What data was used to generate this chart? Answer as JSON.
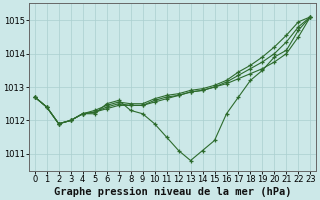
{
  "title": "Graphe pression niveau de la mer (hPa)",
  "background_color": "#cce8e8",
  "grid_color": "#aacfcf",
  "line_color": "#2d6b2d",
  "marker_color": "#2d6b2d",
  "xlim": [
    -0.5,
    23.5
  ],
  "ylim": [
    1010.5,
    1015.5
  ],
  "yticks": [
    1011,
    1012,
    1013,
    1014,
    1015
  ],
  "xticks": [
    0,
    1,
    2,
    3,
    4,
    5,
    6,
    7,
    8,
    9,
    10,
    11,
    12,
    13,
    14,
    15,
    16,
    17,
    18,
    19,
    20,
    21,
    22,
    23
  ],
  "series": [
    [
      1012.7,
      1012.4,
      1011.9,
      1012.0,
      1012.2,
      1012.2,
      1012.5,
      1012.6,
      1012.3,
      1012.2,
      1011.9,
      1011.5,
      1011.1,
      1010.8,
      1011.1,
      1011.4,
      1012.2,
      1012.7,
      1013.2,
      1013.5,
      1013.9,
      1014.1,
      1014.7,
      1015.1
    ],
    [
      1012.7,
      1012.4,
      1011.9,
      1012.0,
      1012.2,
      1012.25,
      1012.35,
      1012.45,
      1012.45,
      1012.45,
      1012.55,
      1012.65,
      1012.75,
      1012.85,
      1012.9,
      1013.0,
      1013.1,
      1013.25,
      1013.4,
      1013.55,
      1013.75,
      1014.0,
      1014.5,
      1015.1
    ],
    [
      1012.7,
      1012.4,
      1011.9,
      1012.0,
      1012.2,
      1012.25,
      1012.4,
      1012.5,
      1012.45,
      1012.45,
      1012.6,
      1012.7,
      1012.75,
      1012.85,
      1012.9,
      1013.0,
      1013.15,
      1013.35,
      1013.55,
      1013.75,
      1014.0,
      1014.35,
      1014.8,
      1015.1
    ],
    [
      1012.7,
      1012.4,
      1011.9,
      1012.0,
      1012.2,
      1012.3,
      1012.45,
      1012.55,
      1012.5,
      1012.5,
      1012.65,
      1012.75,
      1012.8,
      1012.9,
      1012.95,
      1013.05,
      1013.2,
      1013.45,
      1013.65,
      1013.9,
      1014.2,
      1014.55,
      1014.95,
      1015.1
    ]
  ],
  "xlabel_fontsize": 7.5,
  "tick_fontsize": 6.0,
  "spine_color": "#666666"
}
